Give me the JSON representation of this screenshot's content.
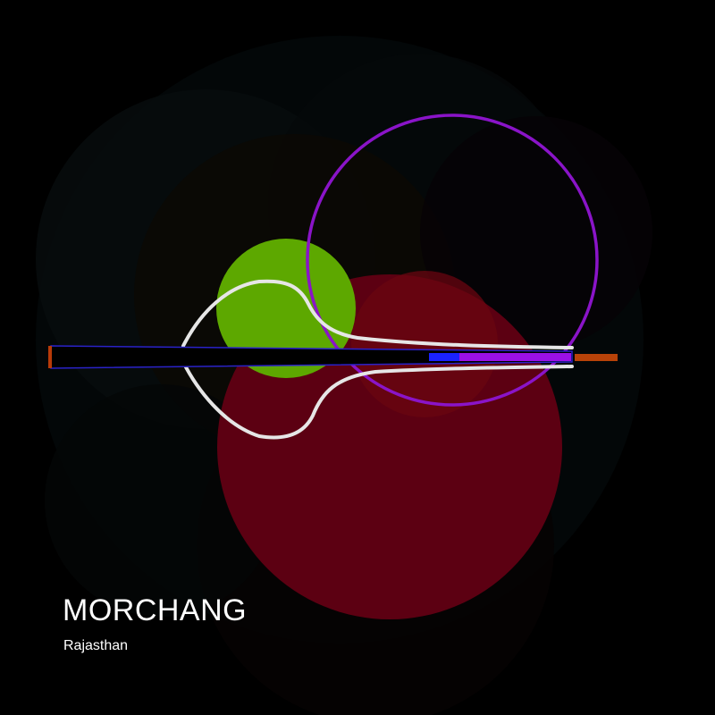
{
  "title": "MORCHANG",
  "subtitle": "Rajasthan",
  "colors": {
    "background": "#000000",
    "green_circle": "#5da800",
    "red_circle": "#5c0012",
    "purple_ring": "#8a14c8",
    "outline": "#e6e6e6",
    "reed_blue": "#1a22ff",
    "reed_purple": "#9b10e6",
    "tip_orange": "#b84208"
  }
}
